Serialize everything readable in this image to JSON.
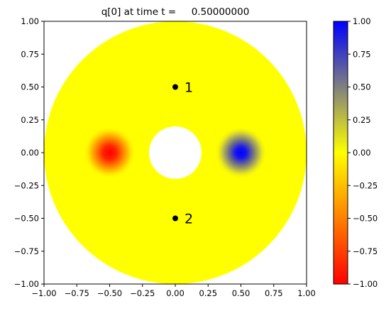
{
  "chart_data": [
    {
      "type": "heatmap",
      "title": "q[0] at time t =     0.50000000",
      "xlim": [
        -1.0,
        1.0
      ],
      "ylim": [
        -1.0,
        1.0
      ],
      "xticks": [
        "−1.00",
        "−0.75",
        "−0.50",
        "−0.25",
        "0.00",
        "0.25",
        "0.50",
        "0.75",
        "1.00"
      ],
      "yticks": [
        "−1.00",
        "−0.75",
        "−0.50",
        "−0.25",
        "0.00",
        "0.25",
        "0.50",
        "0.75",
        "1.00"
      ],
      "xtick_values": [
        -1.0,
        -0.75,
        -0.5,
        -0.25,
        0.0,
        0.25,
        0.5,
        0.75,
        1.0
      ],
      "ytick_values": [
        -1.0,
        -0.75,
        -0.5,
        -0.25,
        0.0,
        0.25,
        0.5,
        0.75,
        1.0
      ],
      "domain": {
        "shape": "annulus",
        "outer_radius": 1.0,
        "inner_radius": 0.2
      },
      "blobs": [
        {
          "x": -0.5,
          "y": 0.0,
          "value": -1.0,
          "width": 0.2
        },
        {
          "x": 0.5,
          "y": 0.0,
          "value": 1.0,
          "width": 0.2
        }
      ],
      "gauges": [
        {
          "label": "1",
          "x": 0.0,
          "y": 0.5
        },
        {
          "label": "2",
          "x": 0.0,
          "y": -0.5
        }
      ],
      "grid": false
    },
    {
      "type": "colorbar",
      "range": [
        -1.0,
        1.0
      ],
      "colors": {
        "low": "#ff0000",
        "mid": "#ffff00",
        "high": "#0000ff"
      },
      "ticks": [
        "1.00",
        "0.75",
        "0.50",
        "0.25",
        "0.00",
        "−0.25",
        "−0.50",
        "−0.75",
        "−1.00"
      ],
      "tick_values": [
        1.0,
        0.75,
        0.5,
        0.25,
        0.0,
        -0.25,
        -0.5,
        -0.75,
        -1.0
      ]
    }
  ]
}
